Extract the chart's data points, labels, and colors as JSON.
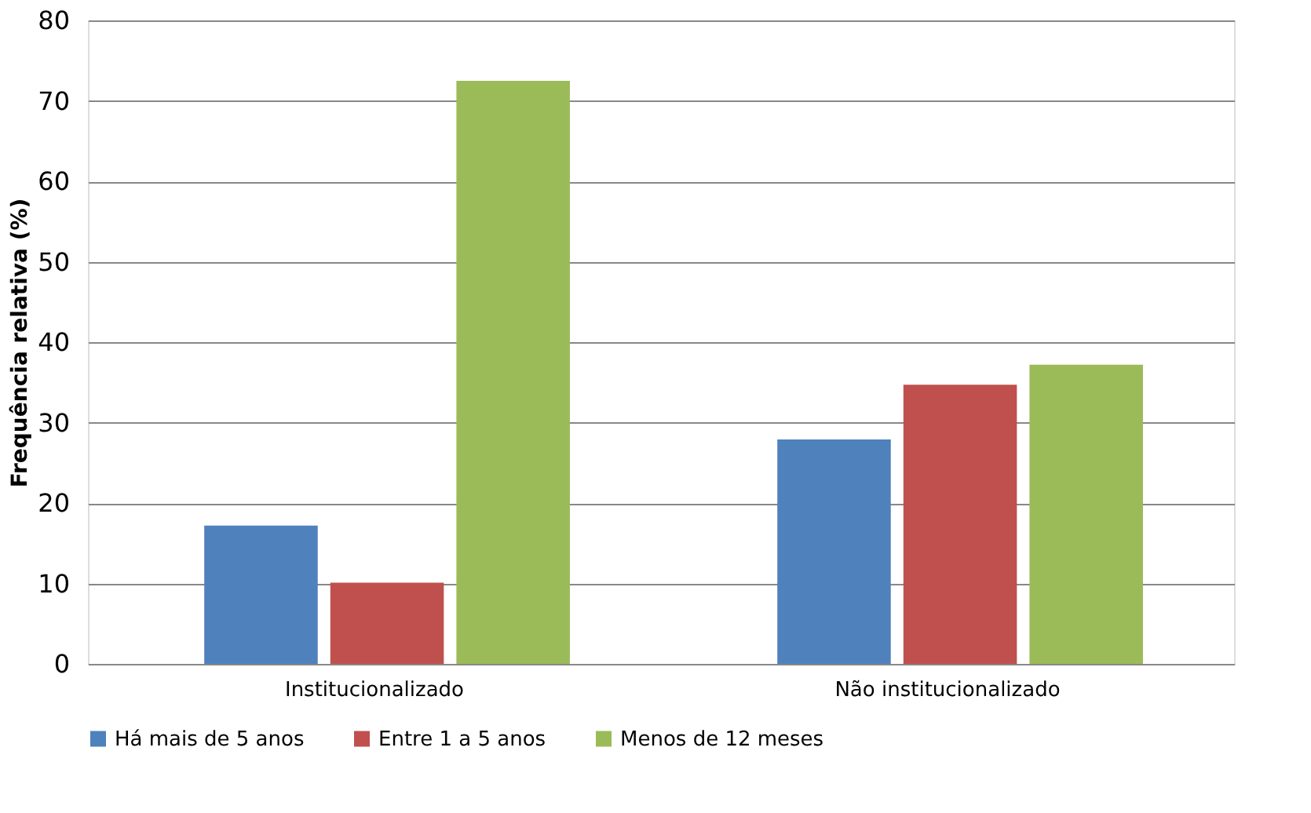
{
  "chart_data": {
    "type": "bar",
    "ylabel": "Frequência relativa (%)",
    "categories": [
      "Institucionalizado",
      "Não institucionalizado"
    ],
    "series": [
      {
        "name": "Há mais de 5 anos",
        "color": "#4f81bd",
        "values": [
          17.2,
          27.9
        ]
      },
      {
        "name": "Entre 1 a 5 anos",
        "color": "#c0504d",
        "values": [
          10.1,
          34.7
        ]
      },
      {
        "name": "Menos de 12 meses",
        "color": "#9bbb59",
        "values": [
          72.5,
          37.2
        ]
      }
    ],
    "ylim": [
      0,
      80
    ],
    "yticks": [
      0,
      10,
      20,
      30,
      40,
      50,
      60,
      70,
      80
    ],
    "grid": "y",
    "legend": "bottom"
  }
}
